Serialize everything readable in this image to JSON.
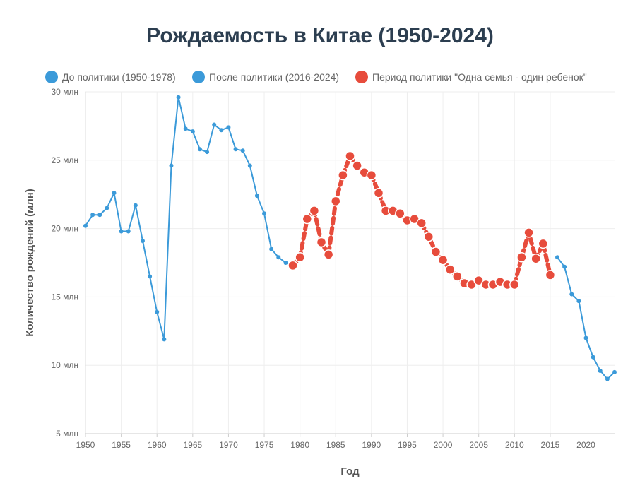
{
  "chart_data": {
    "type": "line",
    "title": "Рождаемость в Китае (1950-2024)",
    "xlabel": "Год",
    "ylabel": "Количество рождений (млн)",
    "xlim": [
      1950,
      2024
    ],
    "ylim": [
      5,
      30
    ],
    "x_ticks": [
      "1950",
      "1955",
      "1960",
      "1965",
      "1970",
      "1975",
      "1980",
      "1985",
      "1990",
      "1995",
      "2000",
      "2005",
      "2010",
      "2015",
      "2020"
    ],
    "y_ticks": [
      "5 млн",
      "10 млн",
      "15 млн",
      "20 млн",
      "25 млн",
      "30 млн"
    ],
    "grid": true,
    "legend_position": "top",
    "series": [
      {
        "name": "До политики (1950-1978)",
        "color": "#3b9ad9",
        "x": [
          1950,
          1951,
          1952,
          1953,
          1954,
          1955,
          1956,
          1957,
          1958,
          1959,
          1960,
          1961,
          1962,
          1963,
          1964,
          1965,
          1966,
          1967,
          1968,
          1969,
          1970,
          1971,
          1972,
          1973,
          1974,
          1975,
          1976,
          1977,
          1978,
          1979
        ],
        "y": [
          20.2,
          21.0,
          21.0,
          21.5,
          22.6,
          19.8,
          19.8,
          21.7,
          19.1,
          16.5,
          13.9,
          11.9,
          24.6,
          29.6,
          27.3,
          27.1,
          25.8,
          25.6,
          27.6,
          27.2,
          27.4,
          25.8,
          25.7,
          24.6,
          22.4,
          21.1,
          18.5,
          17.9,
          17.5,
          17.3
        ]
      },
      {
        "name": "После политики (2016-2024)",
        "color": "#3b9ad9",
        "x": [
          2016,
          2017,
          2018,
          2019,
          2020,
          2021,
          2022,
          2023,
          2024
        ],
        "y": [
          17.9,
          17.2,
          15.2,
          14.7,
          12.0,
          10.6,
          9.6,
          9.0,
          9.5
        ]
      },
      {
        "name": "Период политики \"Одна семья - один ребенок\"",
        "color": "#e74c3c",
        "x": [
          1979,
          1980,
          1981,
          1982,
          1983,
          1984,
          1985,
          1986,
          1987,
          1988,
          1989,
          1990,
          1991,
          1992,
          1993,
          1994,
          1995,
          1996,
          1997,
          1998,
          1999,
          2000,
          2001,
          2002,
          2003,
          2004,
          2005,
          2006,
          2007,
          2008,
          2009,
          2010,
          2011,
          2012,
          2013,
          2014,
          2015
        ],
        "y": [
          17.3,
          17.9,
          20.7,
          21.3,
          19.0,
          18.1,
          22.0,
          23.9,
          25.3,
          24.6,
          24.1,
          23.9,
          22.6,
          21.3,
          21.3,
          21.1,
          20.6,
          20.7,
          20.4,
          19.4,
          18.3,
          17.7,
          17.0,
          16.5,
          16.0,
          15.9,
          16.2,
          15.9,
          15.9,
          16.1,
          15.9,
          15.9,
          17.9,
          19.7,
          17.8,
          18.9,
          16.6
        ]
      }
    ]
  }
}
